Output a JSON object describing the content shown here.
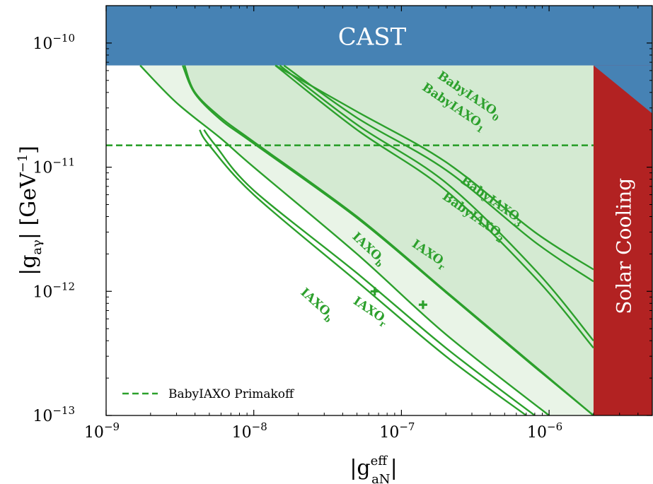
{
  "chart_data": {
    "type": "line",
    "xlabel_main": "|g",
    "xlabel_sub": "aN",
    "xlabel_sup": "eff",
    "xlabel_close": "|",
    "ylabel_main": "|g",
    "ylabel_sub": "aγ",
    "ylabel_rest": "| [GeV",
    "ylabel_sup": "−1",
    "ylabel_close": "]",
    "xscale": "log",
    "yscale": "log",
    "xlim": [
      1e-09,
      5e-06
    ],
    "ylim": [
      1e-13,
      2e-10
    ],
    "x_ticks": [
      {
        "value": 1e-09,
        "base": "10",
        "exp": "−9"
      },
      {
        "value": 1e-08,
        "base": "10",
        "exp": "−8"
      },
      {
        "value": 1e-07,
        "base": "10",
        "exp": "−7"
      },
      {
        "value": 1e-06,
        "base": "10",
        "exp": "−6"
      }
    ],
    "y_ticks": [
      {
        "value": 1e-13,
        "base": "10",
        "exp": "−13"
      },
      {
        "value": 1e-12,
        "base": "10",
        "exp": "−12"
      },
      {
        "value": 1e-11,
        "base": "10",
        "exp": "−11"
      },
      {
        "value": 1e-10,
        "base": "10",
        "exp": "−10"
      }
    ],
    "regions": [
      {
        "name": "CAST",
        "color": "#4682b4",
        "g_agamma_min": 6.6e-11
      },
      {
        "name": "Solar Cooling",
        "color": "#b22222",
        "g_aN_min": 2e-06
      }
    ],
    "legend": {
      "placement": "lower-left",
      "entries": [
        {
          "label": "BabyIAXO Primakoff",
          "style": "dashed",
          "color": "#2ca02c"
        }
      ]
    },
    "primakoff_line": {
      "g_agamma": 1.5e-11
    },
    "curve_color": "#2ca02c",
    "fill_color": "#d4ead2",
    "fill_color_light": "#e9f4e7",
    "curves": [
      {
        "name": "BabyIAXO0",
        "label_main": "BabyIAXO",
        "label_sub": "0",
        "x": [
          1.4e-08,
          5e-08,
          2e-07,
          8e-07,
          2e-06
        ],
        "y": [
          6.6e-11,
          2.8e-11,
          1.1e-11,
          3e-12,
          1.5e-12
        ]
      },
      {
        "name": "BabyIAXO1",
        "label_main": "BabyIAXO",
        "label_sub": "1",
        "x": [
          1.6e-08,
          5e-08,
          2e-07,
          8e-07,
          2e-06
        ],
        "y": [
          6.6e-11,
          2.5e-11,
          9.5e-12,
          2.5e-12,
          1.2e-12
        ]
      },
      {
        "name": "BabyIAXO3",
        "label_main": "BabyIAXO",
        "label_sub": "3",
        "x": [
          1.5e-08,
          5e-08,
          2e-07,
          8e-07,
          2e-06
        ],
        "y": [
          6.6e-11,
          2.2e-11,
          7.5e-12,
          1.5e-12,
          4e-13
        ]
      },
      {
        "name": "BabyIAXO2",
        "label_main": "BabyIAXO",
        "label_sub": "2",
        "x": [
          1.4e-08,
          5e-08,
          2e-07,
          8e-07,
          2e-06
        ],
        "y": [
          6.6e-11,
          2e-11,
          6.5e-12,
          1.3e-12,
          3.5e-13
        ]
      },
      {
        "name": "IAXOb_upper",
        "label_main": "IAXO",
        "label_sub": "b",
        "x": [
          3.4e-09,
          4e-09,
          6e-09,
          1e-08,
          5e-08,
          2e-07,
          8e-07,
          2e-06
        ],
        "y": [
          6.6e-11,
          4e-11,
          2.5e-11,
          1.6e-11,
          4e-12,
          1e-12,
          2.5e-13,
          1e-13
        ]
      },
      {
        "name": "IAXOr_upper",
        "label_main": "IAXO",
        "label_sub": "r",
        "x": [
          3.3e-09,
          4e-09,
          6e-09,
          1e-08,
          5e-08,
          2e-07,
          8e-07,
          2e-06
        ],
        "y": [
          6.6e-11,
          3.9e-11,
          2.4e-11,
          1.55e-11,
          3.9e-12,
          9.8e-13,
          2.45e-13,
          1e-13
        ]
      },
      {
        "name": "IAXOb_outer",
        "label_main": "",
        "label_sub": "",
        "x": [
          1.7e-09,
          3e-09,
          6e-09,
          1e-08,
          5e-08,
          2e-07,
          1e-06
        ],
        "y": [
          6.6e-11,
          3.3e-11,
          1.7e-11,
          1e-11,
          2e-12,
          4.5e-13,
          1e-13
        ]
      },
      {
        "name": "IAXOb_lower",
        "label_main": "IAXO",
        "label_sub": "b",
        "x": [
          4.3e-09,
          5e-09,
          1e-08,
          5e-08,
          2e-07,
          7e-07
        ],
        "y": [
          2e-11,
          1.5e-11,
          6e-12,
          1.2e-12,
          3e-13,
          1e-13
        ]
      },
      {
        "name": "IAXOr_lower",
        "label_main": "IAXO",
        "label_sub": "r",
        "x": [
          4.6e-09,
          5.5e-09,
          1e-08,
          5e-08,
          2e-07,
          8e-07
        ],
        "y": [
          2e-11,
          1.5e-11,
          6.5e-12,
          1.4e-12,
          3.5e-13,
          1e-13
        ]
      }
    ],
    "markers": [
      {
        "name": "IAXOb-marker",
        "x": 6.6e-08,
        "y": 1e-12
      },
      {
        "name": "IAXOr-marker",
        "x": 1.4e-07,
        "y": 7.8e-13
      }
    ]
  }
}
